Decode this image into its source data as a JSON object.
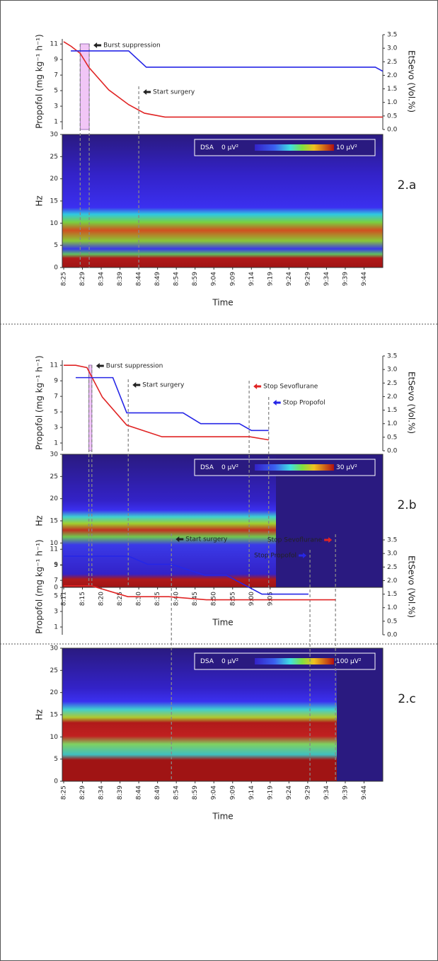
{
  "chart_data": [
    {
      "type": "line",
      "ylabel": "Propofol (mg kg⁻¹ h⁻¹)",
      "y2label": "EtSevo (Vol.%)",
      "ylim": [
        0,
        12.2
      ],
      "yticks": [
        1,
        3,
        5,
        7,
        9,
        11
      ],
      "y2lim": [
        0,
        3.5
      ],
      "y2ticks": [
        {
          "value": 0,
          "label": "0.0"
        },
        {
          "value": 0.5,
          "label": "0.5"
        },
        {
          "value": 1,
          "label": "1.0"
        },
        {
          "value": 1.5,
          "label": "1.5"
        },
        {
          "value": 2,
          "label": "2.0"
        },
        {
          "value": 2.5,
          "label": "2.5"
        },
        {
          "value": 3,
          "label": "3.0"
        },
        {
          "value": 3.5,
          "label": "3.5"
        }
      ],
      "xlim": [
        0,
        85
      ],
      "xticks": [
        {
          "value": 0,
          "label": "8:25"
        },
        {
          "value": 5,
          "label": "8:29"
        },
        {
          "value": 10,
          "label": "8:34"
        },
        {
          "value": 15,
          "label": "8:39"
        },
        {
          "value": 20,
          "label": "8:44"
        },
        {
          "value": 25,
          "label": "8:49"
        },
        {
          "value": 30,
          "label": "8:54"
        },
        {
          "value": 35,
          "label": "8:59"
        },
        {
          "value": 40,
          "label": "9:04"
        },
        {
          "value": 45,
          "label": "9:09"
        },
        {
          "value": 50,
          "label": "9:14"
        },
        {
          "value": 55,
          "label": "9:19"
        },
        {
          "value": 60,
          "label": "9:24"
        },
        {
          "value": 65,
          "label": "9:29"
        },
        {
          "value": 70,
          "label": "9:34"
        },
        {
          "value": 75,
          "label": "9:39"
        },
        {
          "value": 80,
          "label": "9:44"
        }
      ],
      "series": [
        {
          "color": "#e02424",
          "x": [
            0,
            2,
            4.4,
            6.7,
            12,
            17.3,
            21.5,
            27,
            85
          ],
          "values": [
            11.3,
            10.7,
            9.8,
            8,
            5.1,
            3.2,
            2.1,
            1.6,
            1.6
          ]
        },
        {
          "color": "#2626e6",
          "axis": "y2",
          "x": [
            1.9,
            17.3,
            22,
            83,
            85
          ],
          "values": [
            2.9,
            2.9,
            2.3,
            2.3,
            2.15
          ]
        }
      ],
      "annotations": [
        {
          "text": "Burst suppression",
          "span": [
            4.4,
            6.8
          ],
          "arrow_color": "#222222"
        },
        {
          "text": "Start surgery",
          "x": 20,
          "arrow_color": "#222222"
        }
      ],
      "spectrogram": {
        "ylabel": "Hz",
        "ylim": [
          0,
          30
        ],
        "yticks": [
          0,
          5,
          10,
          15,
          20,
          25,
          30
        ],
        "xlabel": "Time",
        "legend_label": "DSA",
        "scale_min": "0 µV²",
        "scale_max": "10 µV²",
        "panel_label": "2.a"
      }
    },
    {
      "type": "line",
      "ylabel": "Propofol (mg kg⁻¹ h⁻¹)",
      "y2label": "EtSevo (Vol.%)",
      "ylim": [
        0,
        12.2
      ],
      "yticks": [
        1,
        3,
        5,
        7,
        9,
        11
      ],
      "y2lim": [
        0,
        3.5
      ],
      "y2ticks": [
        {
          "value": 0,
          "label": "0.0"
        },
        {
          "value": 0.5,
          "label": "0.5"
        },
        {
          "value": 1,
          "label": "1.0"
        },
        {
          "value": 1.5,
          "label": "1.5"
        },
        {
          "value": 2,
          "label": "2.0"
        },
        {
          "value": 2.5,
          "label": "2.5"
        },
        {
          "value": 3,
          "label": "3.0"
        },
        {
          "value": 3.5,
          "label": "3.5"
        }
      ],
      "xlim": [
        0,
        85
      ],
      "xticks": [
        {
          "value": 0,
          "label": "8:11"
        },
        {
          "value": 5,
          "label": "8:15"
        },
        {
          "value": 10,
          "label": "8:20"
        },
        {
          "value": 15,
          "label": "8:25"
        },
        {
          "value": 20,
          "label": "8:30"
        },
        {
          "value": 25,
          "label": "8:35"
        },
        {
          "value": 30,
          "label": "8:40"
        },
        {
          "value": 35,
          "label": "8:45"
        },
        {
          "value": 40,
          "label": "8:50"
        },
        {
          "value": 45,
          "label": "8:55"
        },
        {
          "value": 50,
          "label": "9:00"
        },
        {
          "value": 55,
          "label": "9:05"
        }
      ],
      "series": [
        {
          "color": "#e02424",
          "x": [
            0,
            3.2,
            6.2,
            10.3,
            16.8,
            26.2,
            49.6,
            54.6
          ],
          "values": [
            11,
            11,
            10.7,
            6.9,
            3.3,
            1.8,
            1.8,
            1.4
          ]
        },
        {
          "color": "#2626e6",
          "axis": "y2",
          "x": [
            3.2,
            13.1,
            16.8,
            31.8,
            36.5,
            46.8,
            50,
            54.6
          ],
          "values": [
            2.7,
            2.7,
            1.4,
            1.4,
            1.0,
            1.0,
            0.75,
            0.75
          ]
        }
      ],
      "annotations": [
        {
          "text": "Burst suppression",
          "span": [
            6.7,
            7.5
          ],
          "arrow_color": "#222222"
        },
        {
          "text": "Start surgery",
          "x": 17.2,
          "arrow_color": "#222222"
        },
        {
          "text": "Stop Sevoflurane",
          "x": 49.4,
          "arrow_color": "#e02424"
        },
        {
          "text": "Stop Propofol",
          "x": 54.6,
          "arrow_color": "#2626e6"
        }
      ],
      "spectrogram": {
        "ylabel": "Hz",
        "ylim": [
          0,
          30
        ],
        "yticks": [
          0,
          5,
          10,
          15,
          20,
          25,
          30
        ],
        "xlabel": "Time",
        "legend_label": "DSA",
        "scale_min": "0 µV²",
        "scale_max": "30 µV²",
        "panel_label": "2.b"
      }
    },
    {
      "type": "line",
      "ylabel": "Propofol (mg kg⁻¹ h⁻¹)",
      "y2label": "EtSevo (Vol.%)",
      "ylim": [
        0,
        12.2
      ],
      "yticks": [
        1,
        3,
        5,
        7,
        9,
        11
      ],
      "y2lim": [
        0,
        3.5
      ],
      "y2ticks": [
        {
          "value": 0,
          "label": "0.0"
        },
        {
          "value": 0.5,
          "label": "0.5"
        },
        {
          "value": 1,
          "label": "1.0"
        },
        {
          "value": 1.5,
          "label": "1.5"
        },
        {
          "value": 2,
          "label": "2.0"
        },
        {
          "value": 2.5,
          "label": "2.5"
        },
        {
          "value": 3,
          "label": "3.0"
        },
        {
          "value": 3.5,
          "label": "3.5"
        }
      ],
      "xlim": [
        0,
        85
      ],
      "xticks": [
        {
          "value": 0,
          "label": "8:25"
        },
        {
          "value": 5,
          "label": "8:29"
        },
        {
          "value": 10,
          "label": "8:34"
        },
        {
          "value": 15,
          "label": "8:39"
        },
        {
          "value": 20,
          "label": "8:44"
        },
        {
          "value": 25,
          "label": "8:49"
        },
        {
          "value": 30,
          "label": "8:54"
        },
        {
          "value": 35,
          "label": "8:59"
        },
        {
          "value": 40,
          "label": "9:04"
        },
        {
          "value": 45,
          "label": "9:09"
        },
        {
          "value": 50,
          "label": "9:14"
        },
        {
          "value": 55,
          "label": "9:19"
        },
        {
          "value": 60,
          "label": "9:24"
        },
        {
          "value": 65,
          "label": "9:29"
        },
        {
          "value": 70,
          "label": "9:34"
        },
        {
          "value": 75,
          "label": "9:39"
        },
        {
          "value": 80,
          "label": "9:44"
        }
      ],
      "series": [
        {
          "color": "#e02424",
          "x": [
            0,
            7.4,
            17.1,
            28,
            38,
            72.4
          ],
          "values": [
            6.3,
            6.3,
            4.9,
            4.9,
            4.5,
            4.5
          ]
        },
        {
          "color": "#2626e6",
          "axis": "y2",
          "x": [
            0,
            17.3,
            22.4,
            28.7,
            37.6,
            43.3,
            52.8,
            65.2
          ],
          "values": [
            2.9,
            2.9,
            2.6,
            2.6,
            2.2,
            2.2,
            1.5,
            1.5
          ]
        }
      ],
      "annotations": [
        {
          "text": "Start surgery",
          "x": 28.7,
          "arrow_color": "#222222"
        },
        {
          "text": "Stop Propofol",
          "x": 65.6,
          "arrow_color": "#2626e6"
        },
        {
          "text": "Stop Sevoflurane",
          "x": 72.4,
          "arrow_color": "#e02424"
        }
      ],
      "spectrogram": {
        "ylabel": "Hz",
        "ylim": [
          0,
          30
        ],
        "yticks": [
          0,
          5,
          10,
          15,
          20,
          25,
          30
        ],
        "xlabel": "Time",
        "legend_label": "DSA",
        "scale_min": "0 µV²",
        "scale_max": "100 µV²",
        "panel_label": "2.c"
      }
    }
  ]
}
